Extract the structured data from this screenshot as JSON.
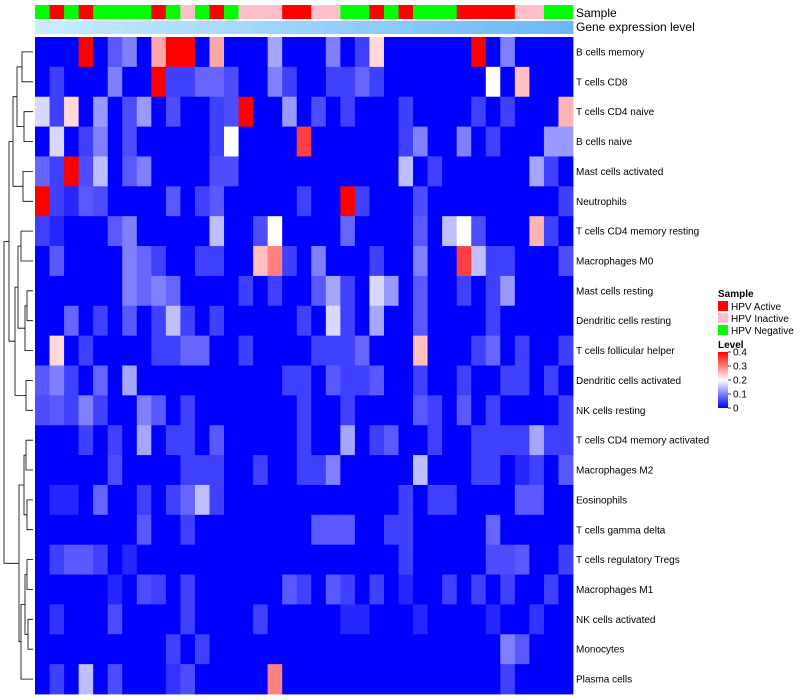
{
  "chart_data": {
    "type": "heatmap",
    "title": "",
    "annotation_tracks": [
      "Sample",
      "Gene expression level"
    ],
    "sample_groups": [
      "Negative",
      "Active",
      "Negative",
      "Active",
      "Negative",
      "Negative",
      "Negative",
      "Negative",
      "Active",
      "Negative",
      "Inactive",
      "Negative",
      "Active",
      "Negative",
      "Inactive",
      "Inactive",
      "Inactive",
      "Active",
      "Active",
      "Inactive",
      "Inactive",
      "Negative",
      "Negative",
      "Active",
      "Negative",
      "Active",
      "Negative",
      "Negative",
      "Negative",
      "Active",
      "Active",
      "Active",
      "Active",
      "Inactive",
      "Inactive",
      "Negative",
      "Negative"
    ],
    "row_labels": [
      "B cells memory",
      "T cells CD8",
      "T cells CD4 naive",
      "B cells naive",
      "Mast cells activated",
      "Neutrophils",
      "T cells CD4 memory resting",
      "Macrophages M0",
      "Mast cells resting",
      "Dendritic cells resting",
      "T cells follicular helper",
      "Dendritic cells activated",
      "NK cells resting",
      "T cells CD4 memory activated",
      "Macrophages M2",
      "Eosinophils",
      "T cells gamma delta",
      "T cells regulatory  Tregs",
      "Macrophages M1",
      "NK cells activated",
      "Monocytes",
      "Plasma cells"
    ],
    "values": [
      [
        0,
        0,
        0,
        0.4,
        0,
        0.07,
        0.1,
        0,
        0.27,
        0.4,
        0.4,
        0,
        0.27,
        0,
        0,
        0,
        0.13,
        0,
        0,
        0,
        0.1,
        0,
        0.05,
        0.23,
        0,
        0,
        0,
        0,
        0,
        0,
        0.4,
        0,
        0.1,
        0,
        0,
        0,
        0
      ],
      [
        0,
        0.05,
        0,
        0,
        0,
        0.1,
        0,
        0,
        0.4,
        0.05,
        0.05,
        0.08,
        0.08,
        0.06,
        0,
        0,
        0.1,
        0.05,
        0,
        0,
        0.05,
        0.05,
        0.08,
        0.05,
        0,
        0,
        0,
        0,
        0,
        0,
        0,
        0.2,
        0,
        0.25,
        0,
        0,
        0
      ],
      [
        0.17,
        0.05,
        0.23,
        0,
        0.12,
        0,
        0.06,
        0.12,
        0,
        0.06,
        0,
        0,
        0.05,
        0.06,
        0.4,
        0,
        0,
        0.12,
        0,
        0.06,
        0,
        0.05,
        0,
        0,
        0,
        0.05,
        0,
        0,
        0,
        0,
        0.05,
        0,
        0.05,
        0,
        0,
        0,
        0.26
      ],
      [
        0,
        0.17,
        0,
        0.05,
        0.1,
        0,
        0.06,
        0,
        0,
        0,
        0,
        0,
        0.05,
        0.2,
        0,
        0,
        0,
        0,
        0.35,
        0,
        0,
        0,
        0,
        0,
        0,
        0.05,
        0.1,
        0,
        0,
        0.1,
        0,
        0.05,
        0,
        0,
        0,
        0.12,
        0.12
      ],
      [
        0.08,
        0.05,
        0.4,
        0.06,
        0.15,
        0,
        0.07,
        0.1,
        0,
        0,
        0,
        0,
        0.06,
        0.06,
        0,
        0,
        0,
        0,
        0,
        0,
        0,
        0,
        0,
        0,
        0,
        0.15,
        0,
        0.05,
        0,
        0,
        0,
        0,
        0,
        0,
        0.13,
        0.05,
        0
      ],
      [
        0.4,
        0.05,
        0.03,
        0.07,
        0.06,
        0,
        0,
        0,
        0,
        0.07,
        0,
        0.05,
        0.07,
        0,
        0,
        0,
        0,
        0,
        0.05,
        0,
        0,
        0.4,
        0.05,
        0,
        0,
        0,
        0.06,
        0,
        0,
        0,
        0,
        0,
        0,
        0,
        0,
        0,
        0.05
      ],
      [
        0.05,
        0.03,
        0,
        0,
        0,
        0.07,
        0.1,
        0,
        0,
        0,
        0,
        0,
        0.15,
        0,
        0,
        0.06,
        0.2,
        0,
        0,
        0,
        0,
        0.08,
        0,
        0,
        0,
        0,
        0.07,
        0,
        0.15,
        0.2,
        0.06,
        0,
        0,
        0,
        0.26,
        0.05,
        0
      ],
      [
        0,
        0.07,
        0,
        0,
        0,
        0,
        0.1,
        0.08,
        0.05,
        0,
        0,
        0.05,
        0.05,
        0,
        0,
        0.25,
        0.3,
        0.05,
        0,
        0.1,
        0,
        0,
        0,
        0.05,
        0,
        0,
        0.1,
        0,
        0,
        0.35,
        0.15,
        0.05,
        0.05,
        0,
        0,
        0,
        0.06
      ],
      [
        0,
        0,
        0,
        0,
        0,
        0,
        0.1,
        0.08,
        0.1,
        0.08,
        0,
        0,
        0,
        0,
        0.05,
        0,
        0.05,
        0,
        0,
        0.07,
        0.13,
        0.05,
        0,
        0.17,
        0.12,
        0,
        0.07,
        0,
        0,
        0.05,
        0,
        0.05,
        0.12,
        0,
        0,
        0,
        0
      ],
      [
        0,
        0,
        0.08,
        0,
        0.05,
        0,
        0.07,
        0,
        0.05,
        0.15,
        0.05,
        0,
        0.05,
        0,
        0,
        0,
        0,
        0,
        0.05,
        0,
        0.17,
        0.05,
        0,
        0.13,
        0,
        0,
        0.07,
        0,
        0,
        0,
        0,
        0.05,
        0,
        0,
        0,
        0,
        0
      ],
      [
        0,
        0.23,
        0,
        0.05,
        0,
        0,
        0,
        0,
        0.05,
        0.05,
        0.08,
        0.08,
        0,
        0,
        0.05,
        0,
        0,
        0,
        0,
        0.05,
        0.05,
        0.05,
        0.08,
        0,
        0,
        0,
        0.25,
        0,
        0,
        0,
        0.05,
        0.08,
        0,
        0.05,
        0,
        0,
        0.05
      ],
      [
        0.07,
        0.1,
        0.05,
        0,
        0.08,
        0,
        0.13,
        0,
        0,
        0,
        0,
        0,
        0,
        0,
        0,
        0,
        0,
        0.05,
        0.05,
        0,
        0.07,
        0.05,
        0.05,
        0.07,
        0,
        0,
        0.05,
        0,
        0,
        0.05,
        0,
        0,
        0.05,
        0.05,
        0,
        0.05,
        0
      ],
      [
        0.06,
        0.07,
        0.05,
        0.1,
        0.05,
        0,
        0,
        0.1,
        0.07,
        0,
        0.05,
        0,
        0,
        0,
        0,
        0,
        0,
        0,
        0.05,
        0,
        0,
        0.05,
        0,
        0,
        0,
        0,
        0.07,
        0.05,
        0,
        0.07,
        0,
        0.05,
        0,
        0,
        0,
        0,
        0.05
      ],
      [
        0,
        0,
        0,
        0.05,
        0,
        0.05,
        0,
        0.13,
        0,
        0.05,
        0.05,
        0,
        0.07,
        0,
        0,
        0,
        0,
        0,
        0.05,
        0,
        0,
        0.13,
        0,
        0.05,
        0.07,
        0,
        0,
        0.05,
        0,
        0,
        0.05,
        0.05,
        0.05,
        0.05,
        0.13,
        0.05,
        0.05
      ],
      [
        0,
        0,
        0,
        0,
        0,
        0.06,
        0,
        0,
        0,
        0,
        0.05,
        0.05,
        0.05,
        0,
        0,
        0.05,
        0,
        0,
        0.05,
        0.05,
        0.1,
        0,
        0,
        0,
        0,
        0,
        0.15,
        0,
        0,
        0,
        0.05,
        0.05,
        0,
        0.03,
        0.05,
        0,
        0.07
      ],
      [
        0,
        0.03,
        0.03,
        0,
        0.08,
        0,
        0,
        0.05,
        0,
        0.05,
        0.08,
        0.15,
        0.05,
        0,
        0,
        0,
        0,
        0,
        0,
        0,
        0,
        0,
        0,
        0,
        0,
        0.05,
        0,
        0.05,
        0.05,
        0,
        0,
        0,
        0,
        0.07,
        0.07,
        0,
        0
      ],
      [
        0,
        0,
        0,
        0,
        0,
        0,
        0,
        0.07,
        0,
        0,
        0.05,
        0,
        0,
        0,
        0,
        0,
        0,
        0,
        0,
        0.07,
        0.07,
        0.07,
        0,
        0,
        0.05,
        0.05,
        0,
        0,
        0,
        0,
        0,
        0.08,
        0,
        0,
        0,
        0,
        0
      ],
      [
        0,
        0.05,
        0.07,
        0.07,
        0.05,
        0,
        0.03,
        0,
        0,
        0,
        0,
        0,
        0,
        0,
        0,
        0,
        0,
        0,
        0,
        0,
        0,
        0,
        0,
        0,
        0,
        0.05,
        0,
        0,
        0,
        0,
        0,
        0.06,
        0.06,
        0.07,
        0,
        0,
        0.05
      ],
      [
        0,
        0,
        0,
        0,
        0,
        0.03,
        0,
        0.06,
        0.05,
        0,
        0.05,
        0,
        0,
        0,
        0,
        0,
        0,
        0.07,
        0.05,
        0,
        0.07,
        0.05,
        0,
        0.05,
        0,
        0.03,
        0,
        0,
        0.05,
        0,
        0.05,
        0,
        0.05,
        0,
        0,
        0.05,
        0
      ],
      [
        0,
        0.04,
        0,
        0,
        0,
        0.06,
        0,
        0,
        0,
        0,
        0.05,
        0,
        0,
        0,
        0,
        0.05,
        0,
        0,
        0,
        0,
        0,
        0.03,
        0.03,
        0,
        0,
        0,
        0.03,
        0,
        0,
        0,
        0,
        0.03,
        0,
        0,
        0.04,
        0,
        0
      ],
      [
        0,
        0,
        0,
        0,
        0,
        0,
        0,
        0,
        0,
        0.05,
        0,
        0.05,
        0,
        0,
        0,
        0,
        0,
        0,
        0,
        0,
        0,
        0,
        0,
        0,
        0,
        0,
        0,
        0,
        0,
        0,
        0,
        0,
        0.1,
        0.07,
        0,
        0,
        0
      ],
      [
        0,
        0.05,
        0,
        0.15,
        0,
        0.06,
        0,
        0,
        0,
        0.04,
        0.06,
        0,
        0,
        0,
        0,
        0,
        0.3,
        0,
        0,
        0,
        0,
        0,
        0,
        0,
        0,
        0,
        0,
        0,
        0,
        0,
        0,
        0,
        0.05,
        0,
        0,
        0,
        0
      ]
    ],
    "legend_sample": {
      "title": "Sample",
      "entries": [
        "HPV Active",
        "HPV Inactive",
        "HPV Negative"
      ]
    },
    "legend_level": {
      "title": "Level",
      "ticks": [
        0.4,
        0.3,
        0.2,
        0.1,
        0
      ],
      "tick_labels": [
        "0.4",
        "0.3",
        "0.2",
        "0.1",
        "0"
      ],
      "range": [
        0,
        0.4
      ]
    },
    "colors": {
      "low": "#0000ff",
      "mid": "#ffffff",
      "high": "#ff0000",
      "active": "#ff0000",
      "inactive": "#ffc0cb",
      "negative": "#00ff00",
      "expression_track_start": "#c6ecff",
      "expression_track_end": "#6cb8f5",
      "dendrogram": "#000000"
    }
  }
}
